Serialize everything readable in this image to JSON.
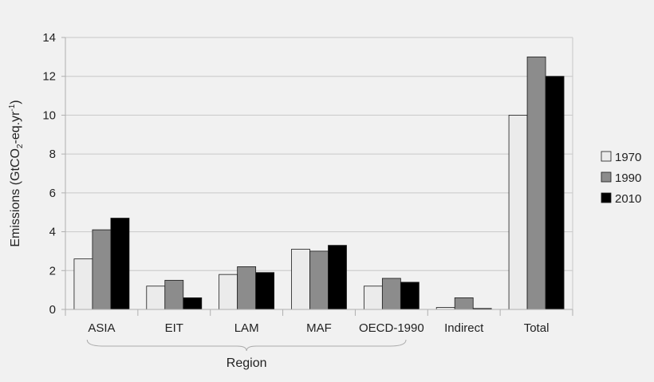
{
  "chart_data": {
    "type": "bar",
    "title": "",
    "xlabel": "",
    "ylabel": "Emissions (GtCO2-eq.yr-1)",
    "ylabel_parts": {
      "pre": "Emissions (GtCO",
      "sub": "2",
      "mid": "-eq.yr",
      "sup": "-1",
      "post": ")"
    },
    "group_label": "Region",
    "ylim": [
      0,
      14
    ],
    "yticks": [
      0,
      2,
      4,
      6,
      8,
      10,
      12,
      14
    ],
    "grid": true,
    "legend_position": "right",
    "categories": [
      "ASIA",
      "EIT",
      "LAM",
      "MAF",
      "OECD-1990",
      "Indirect",
      "Total"
    ],
    "series": [
      {
        "name": "1970",
        "color": "#ebebeb",
        "values": [
          2.6,
          1.2,
          1.8,
          3.1,
          1.2,
          0.1,
          10.0
        ]
      },
      {
        "name": "1990",
        "color": "#8c8c8c",
        "values": [
          4.1,
          1.5,
          2.2,
          3.0,
          1.6,
          0.6,
          13.0
        ]
      },
      {
        "name": "2010",
        "color": "#000000",
        "values": [
          4.7,
          0.6,
          1.9,
          3.3,
          1.4,
          0.05,
          12.0
        ]
      }
    ]
  }
}
